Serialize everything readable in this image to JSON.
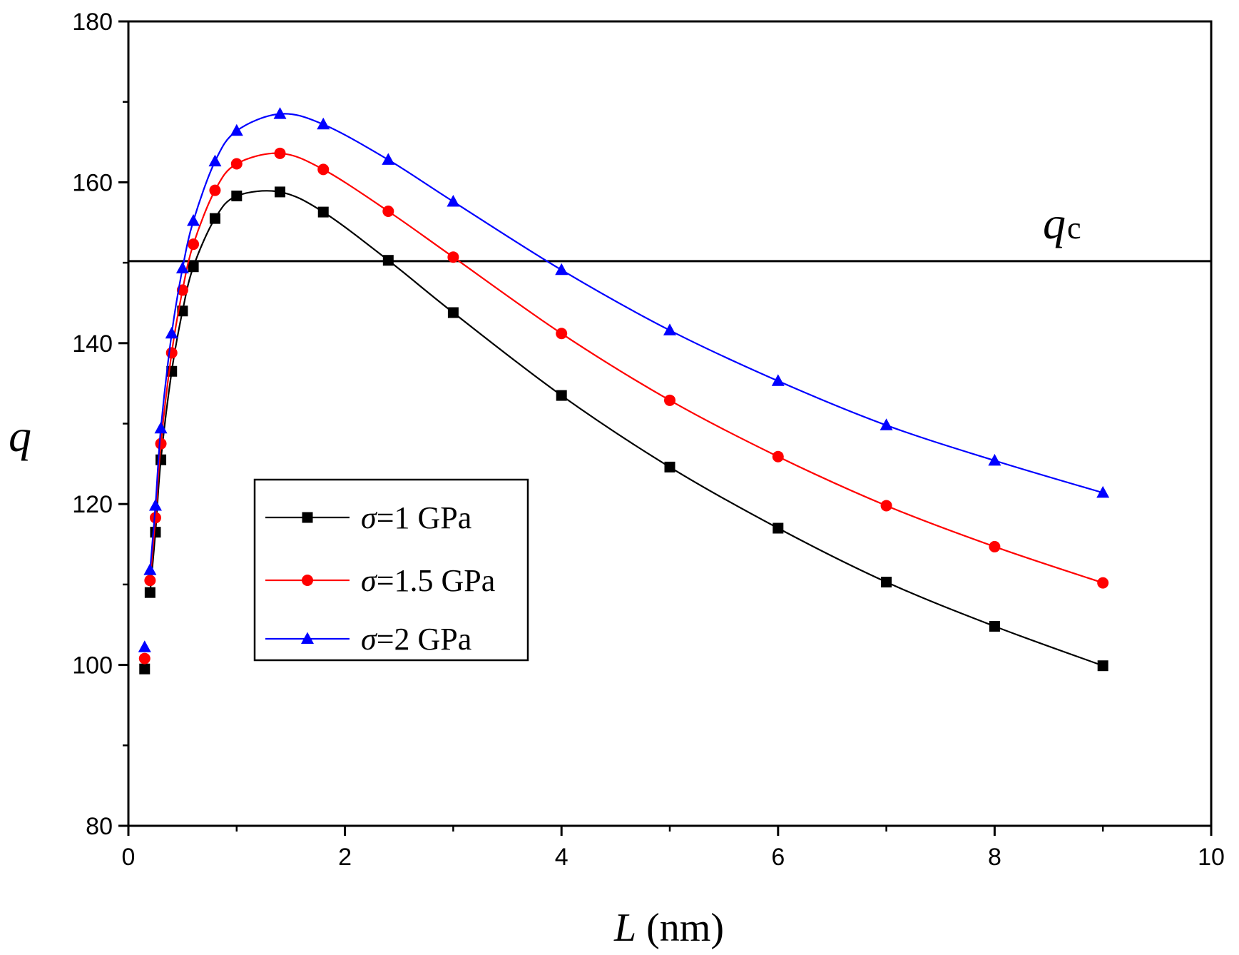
{
  "chart_data": {
    "type": "line",
    "title": "",
    "xlabel_var": "L",
    "xlabel_unit": " (nm)",
    "ylabel": "q",
    "xlim": [
      0,
      10
    ],
    "ylim": [
      80,
      180
    ],
    "xticks": [
      0,
      2,
      4,
      6,
      8,
      10
    ],
    "yticks": [
      80,
      100,
      120,
      140,
      160,
      180
    ],
    "grid": false,
    "legend_position": "center-left",
    "x": [
      0.15,
      0.2,
      0.25,
      0.3,
      0.4,
      0.5,
      0.6,
      0.8,
      1.0,
      1.4,
      1.8,
      2.4,
      3.0,
      4.0,
      5.0,
      6.0,
      7.0,
      8.0,
      9.0
    ],
    "series": [
      {
        "name": "σ=1 GPa",
        "legend_symbol": "σ",
        "legend_text": "=1 GPa",
        "color": "#000000",
        "marker": "square",
        "values": [
          99.5,
          109,
          116.5,
          125.5,
          136.5,
          144,
          149.5,
          155.5,
          158.3,
          158.8,
          156.3,
          150.3,
          143.8,
          133.5,
          124.6,
          117.0,
          110.3,
          104.8,
          99.9
        ]
      },
      {
        "name": "σ=1.5 GPa",
        "legend_symbol": "σ",
        "legend_text": "=1.5 GPa",
        "color": "#ff0000",
        "marker": "circle",
        "values": [
          100.8,
          110.5,
          118.3,
          127.5,
          138.8,
          146.6,
          152.3,
          159.0,
          162.3,
          163.6,
          161.6,
          156.4,
          150.7,
          141.2,
          132.9,
          125.9,
          119.8,
          114.7,
          110.2
        ]
      },
      {
        "name": "σ=2 GPa",
        "legend_symbol": "σ",
        "legend_text": "=2 GPa",
        "color": "#0000ff",
        "marker": "triangle",
        "values": [
          102.2,
          111.8,
          119.8,
          129.4,
          141.2,
          149.3,
          155.2,
          162.6,
          166.4,
          168.5,
          167.2,
          162.8,
          157.6,
          149.1,
          141.6,
          135.3,
          129.8,
          125.4,
          121.4
        ]
      }
    ],
    "reference_line": {
      "y": 150.2,
      "label_var": "q",
      "label_sub": "c",
      "color": "#000000"
    }
  }
}
